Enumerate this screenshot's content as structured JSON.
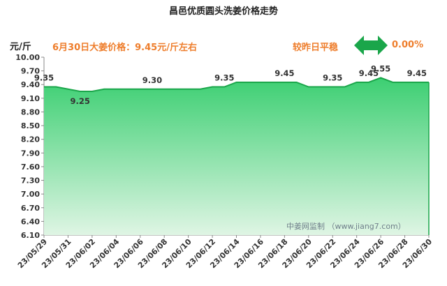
{
  "title": "昌邑优质圆头洗姜价格走势",
  "unit_label": "元/斤",
  "price_note": "6月30日大姜价格：9.45元/斤左右",
  "change_label": "较昨日平稳",
  "change_pct": "0.00%",
  "change_icon": "left-right-arrow-icon",
  "watermark": "中姜网监制 （www.jiang7.com）",
  "colors": {
    "accent": "#ee7d2b",
    "arrow": "#1aa64a",
    "line": "#1aa64a",
    "fill_top": "#3ccf72",
    "fill_bottom": "#dff5e4"
  },
  "chart_data": {
    "type": "area",
    "xlabel": "",
    "ylabel": "元/斤",
    "ylim": [
      6.1,
      10.0
    ],
    "yticks": [
      "10.00",
      "9.70",
      "9.40",
      "9.10",
      "8.80",
      "8.50",
      "8.20",
      "7.90",
      "7.60",
      "7.30",
      "7.00",
      "6.70",
      "6.40",
      "6.10"
    ],
    "x": [
      "23/05/29",
      "23/05/30",
      "23/05/31",
      "23/06/01",
      "23/06/02",
      "23/06/03",
      "23/06/04",
      "23/06/05",
      "23/06/06",
      "23/06/07",
      "23/06/08",
      "23/06/09",
      "23/06/10",
      "23/06/11",
      "23/06/12",
      "23/06/13",
      "23/06/14",
      "23/06/15",
      "23/06/16",
      "23/06/17",
      "23/06/18",
      "23/06/19",
      "23/06/20",
      "23/06/21",
      "23/06/22",
      "23/06/23",
      "23/06/24",
      "23/06/25",
      "23/06/26",
      "23/06/27",
      "23/06/28",
      "23/06/29",
      "23/06/30"
    ],
    "xtick_labels": [
      "23/05/29",
      "23/05/31",
      "23/06/02",
      "23/06/04",
      "23/06/06",
      "23/06/08",
      "23/06/10",
      "23/06/12",
      "23/06/14",
      "23/06/16",
      "23/06/18",
      "23/06/20",
      "23/06/22",
      "23/06/24",
      "23/06/26",
      "23/06/28",
      "23/06/30"
    ],
    "values": [
      9.35,
      9.35,
      9.3,
      9.25,
      9.25,
      9.3,
      9.3,
      9.3,
      9.3,
      9.3,
      9.3,
      9.3,
      9.3,
      9.3,
      9.35,
      9.35,
      9.45,
      9.45,
      9.45,
      9.45,
      9.45,
      9.45,
      9.35,
      9.35,
      9.35,
      9.35,
      9.45,
      9.45,
      9.55,
      9.45,
      9.45,
      9.45,
      9.45
    ],
    "data_labels": [
      {
        "index": 0,
        "text": "9.35"
      },
      {
        "index": 3,
        "text": "9.25"
      },
      {
        "index": 9,
        "text": "9.30"
      },
      {
        "index": 15,
        "text": "9.35"
      },
      {
        "index": 20,
        "text": "9.45"
      },
      {
        "index": 24,
        "text": "9.35"
      },
      {
        "index": 27,
        "text": "9.45"
      },
      {
        "index": 28,
        "text": "9.55"
      },
      {
        "index": 31,
        "text": "9.45"
      }
    ],
    "grid": false
  }
}
